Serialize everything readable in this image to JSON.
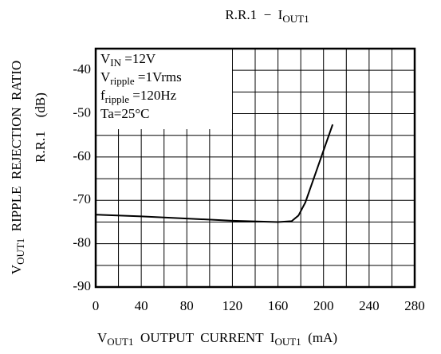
{
  "chart_data": {
    "type": "line",
    "title": [
      {
        "t": "R.R.1  −  I"
      },
      {
        "t": "OUT1",
        "sub": true
      }
    ],
    "ylabel": [
      {
        "t": "V"
      },
      {
        "t": "OUT1",
        "sub": true
      },
      {
        "t": "  RIPPLE  REJECTION  RATIO"
      }
    ],
    "ylabel2": [
      {
        "t": "R.R.1    (dB)"
      }
    ],
    "xlabel": [
      {
        "t": "V"
      },
      {
        "t": "OUT1",
        "sub": true
      },
      {
        "t": "  OUTPUT  CURRENT  I"
      },
      {
        "t": "OUT1",
        "sub": true
      },
      {
        "t": "  (mA)"
      }
    ],
    "annotation": [
      [
        {
          "t": "V"
        },
        {
          "t": "IN",
          "sub": true
        },
        {
          "t": " =12V"
        }
      ],
      [
        {
          "t": "V"
        },
        {
          "t": "ripple",
          "sub": true
        },
        {
          "t": " =1Vrms"
        }
      ],
      [
        {
          "t": "f"
        },
        {
          "t": "ripple",
          "sub": true
        },
        {
          "t": " =120Hz"
        }
      ],
      [
        {
          "t": "Ta=25°C"
        }
      ]
    ],
    "x": [
      0,
      40,
      80,
      120,
      160,
      172,
      178,
      184,
      190,
      196,
      202,
      208
    ],
    "series": [
      {
        "name": "R.R.1",
        "color": "#000000",
        "values": [
          -73.3,
          -73.7,
          -74.2,
          -74.7,
          -75,
          -74.8,
          -73.5,
          -70.5,
          -66,
          -61.5,
          -57,
          -52.5
        ]
      }
    ],
    "xlim": [
      0,
      280
    ],
    "ylim": [
      -90,
      -35
    ],
    "xticks": [
      0,
      40,
      80,
      120,
      160,
      200,
      240,
      280
    ],
    "yticks": [
      -90,
      -80,
      -70,
      -60,
      -50,
      -40
    ],
    "xminor": [
      20,
      60,
      100,
      140,
      180,
      220,
      260
    ],
    "yminor": [
      -85,
      -75,
      -65,
      -55,
      -45
    ],
    "grid": true
  }
}
